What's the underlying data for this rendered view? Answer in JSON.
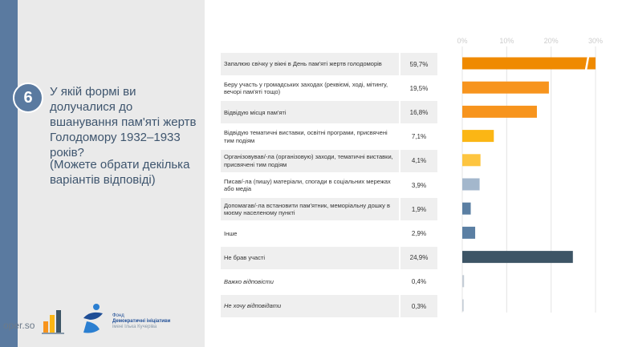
{
  "question": {
    "number": "6",
    "text": "У якій формі ви долучалися до вшанування пам'яті жертв Голодомору 1932–1933 років?",
    "note": "(Можете обрати декілька варіантів відповіді)"
  },
  "footer": {
    "site": "oper.so",
    "fund_line1": "Фонд",
    "fund_line2": "Демократичні ініціативи",
    "fund_line3": "імені Ілька Кучеріва"
  },
  "colors": {
    "orange_dark": "#ef8a00",
    "orange": "#f7941d",
    "yellow": "#fbb615",
    "light_yellow": "#fdc540",
    "light_blue": "#a3b7cc",
    "blue": "#5b7fa3",
    "dark_slate": "#3d5566",
    "pale": "#c5cdd6"
  },
  "chart_data": {
    "type": "bar",
    "orientation": "horizontal",
    "xlim": [
      0,
      30
    ],
    "ticks": [
      "0%",
      "10%",
      "20%",
      "30%"
    ],
    "tick_values": [
      0,
      10,
      20,
      30
    ],
    "grid": true,
    "axis_break": true,
    "categories": [
      "Запалюю свічку у вікні в День пам'яті жертв голодоморів",
      "Беру участь у громадських заходах (реквіємі, ході, мітингу, вечорі пам'яті тощо)",
      "Відвідую місця пам'яті",
      "Відвідую тематичні виставки, освітні програми, присвячені тим подіям",
      "Організовував/-ла (організовую) заходи, тематичні виставки, присвячені тим подіям",
      "Писав/-ла (пишу) матеріали, спогади в соціальних мережах або медіа",
      "Допомагав/-ла встановити пам'ятник, меморіальну дошку в моєму населеному пункті",
      "Інше",
      "Не брав участі",
      "Важко відповісти",
      "Не хочу відповідати"
    ],
    "values": [
      59.7,
      19.5,
      16.8,
      7.1,
      4.1,
      3.9,
      1.9,
      2.9,
      24.9,
      0.4,
      0.3
    ],
    "value_labels": [
      "59,7%",
      "19,5%",
      "16,8%",
      "7,1%",
      "4,1%",
      "3,9%",
      "1,9%",
      "2,9%",
      "24,9%",
      "0,4%",
      "0,3%"
    ],
    "bar_colors": [
      "#ef8a00",
      "#f7941d",
      "#f7941d",
      "#fbb615",
      "#fdc540",
      "#a3b7cc",
      "#5b7fa3",
      "#5b7fa3",
      "#3d5566",
      "#c5cdd6",
      "#c5cdd6"
    ],
    "italic": [
      false,
      false,
      false,
      false,
      false,
      false,
      false,
      false,
      false,
      true,
      true
    ]
  }
}
